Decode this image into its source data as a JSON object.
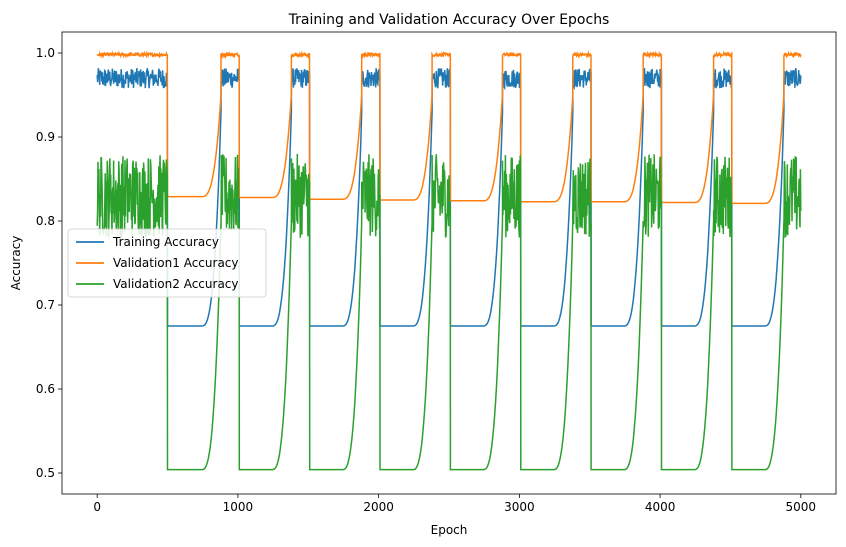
{
  "chart_data": {
    "type": "line",
    "title": "Training and Validation Accuracy Over Epochs",
    "xlabel": "Epoch",
    "ylabel": "Accuracy",
    "xlim": [
      -250,
      5250
    ],
    "ylim": [
      0.475,
      1.025
    ],
    "xticks": [
      0,
      1000,
      2000,
      3000,
      4000,
      5000
    ],
    "yticks": [
      0.5,
      0.6,
      0.7,
      0.8,
      0.9,
      1.0
    ],
    "xtick_labels": [
      "0",
      "1000",
      "2000",
      "3000",
      "4000",
      "5000"
    ],
    "ytick_labels": [
      "0.5",
      "0.6",
      "0.7",
      "0.8",
      "0.9",
      "1.0"
    ],
    "grid": false,
    "legend_position": "center-left",
    "cycles": [
      {
        "start": 0,
        "low_start": 500,
        "rise_start": 800,
        "high_start": 880,
        "end": 1000
      },
      {
        "start": 1000,
        "low_start": 1010,
        "rise_start": 1300,
        "high_start": 1380,
        "end": 1500
      },
      {
        "start": 1500,
        "low_start": 1510,
        "rise_start": 1800,
        "high_start": 1880,
        "end": 2000
      },
      {
        "start": 2000,
        "low_start": 2010,
        "rise_start": 2300,
        "high_start": 2380,
        "end": 2500
      },
      {
        "start": 2500,
        "low_start": 2510,
        "rise_start": 2800,
        "high_start": 2880,
        "end": 3000
      },
      {
        "start": 3000,
        "low_start": 3010,
        "rise_start": 3300,
        "high_start": 3380,
        "end": 3500
      },
      {
        "start": 3500,
        "low_start": 3510,
        "rise_start": 3800,
        "high_start": 3880,
        "end": 4000
      },
      {
        "start": 4000,
        "low_start": 4010,
        "rise_start": 4300,
        "high_start": 4380,
        "end": 4500
      },
      {
        "start": 4500,
        "low_start": 4510,
        "rise_start": 4800,
        "high_start": 4880,
        "end": 5000
      }
    ],
    "series": [
      {
        "name": "Training Accuracy",
        "color": "#1f77b4",
        "high": 0.97,
        "high_noise": 0.012,
        "low": 0.675,
        "rise_to": 0.93
      },
      {
        "name": "Validation1 Accuracy",
        "color": "#ff7f0e",
        "high": 0.998,
        "high_noise": 0.002,
        "low": [
          0.829,
          0.828,
          0.826,
          0.825,
          0.824,
          0.823,
          0.823,
          0.822,
          0.821
        ],
        "rise_to": 0.95
      },
      {
        "name": "Validation2 Accuracy",
        "color": "#2ca02c",
        "high": 0.83,
        "high_noise": 0.05,
        "low": 0.504,
        "rise_to": 0.8
      }
    ]
  }
}
